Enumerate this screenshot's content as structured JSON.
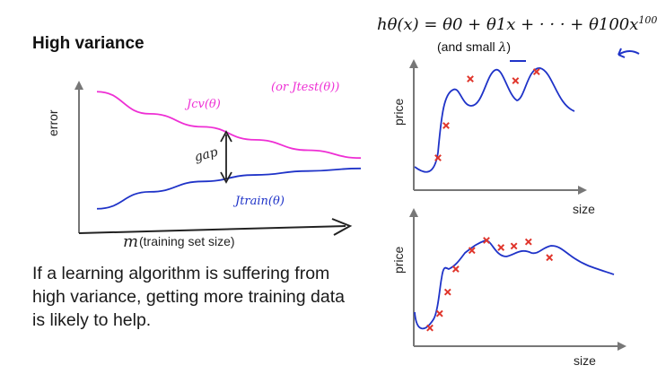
{
  "slide": {
    "title": "High variance",
    "formula_label": "hθ(x) = θ0 + θ1x + · · · + θ100x",
    "formula_exponent": "100",
    "formula_note_prefix": "(and small ",
    "formula_note_symbol": "λ",
    "formula_note_suffix": ")",
    "paragraph": "If a learning algorithm is suffering from high variance, getting more training data is likely to help."
  },
  "colors": {
    "cv_curve": "#ee2fd4",
    "train_curve": "#1f33c8",
    "fit_curve": "#1f33c8",
    "data_marks": "#e0352b",
    "annotation": "#1f33c8"
  },
  "icons": [
    "arrow-icon"
  ],
  "chart_data": [
    {
      "type": "line",
      "ylabel": "error",
      "xlabel_symbol": "m",
      "xlabel": "(training set size)",
      "annotations": {
        "cv": "Jcv(θ)",
        "test": "(or Jtest(θ))",
        "train": "Jtrain(θ)",
        "gap": "gap"
      },
      "series": [
        {
          "name": "Jcv(θ)",
          "values": [
            0.95,
            0.78,
            0.68,
            0.58,
            0.5,
            0.44
          ]
        },
        {
          "name": "Jtrain(θ)",
          "values": [
            0.05,
            0.18,
            0.26,
            0.31,
            0.34,
            0.36
          ]
        }
      ]
    },
    {
      "type": "scatter",
      "ylabel": "price",
      "xlabel": "size",
      "points": [
        [
          1.5,
          1.2
        ],
        [
          2.0,
          3.0
        ],
        [
          3.5,
          5.6
        ],
        [
          6.3,
          5.5
        ],
        [
          7.6,
          6.0
        ]
      ],
      "fit": "curve"
    },
    {
      "type": "scatter",
      "ylabel": "price",
      "xlabel": "size",
      "points": [
        [
          1.0,
          0.4
        ],
        [
          1.6,
          1.4
        ],
        [
          2.1,
          2.9
        ],
        [
          2.6,
          4.5
        ],
        [
          3.6,
          5.8
        ],
        [
          4.5,
          6.5
        ],
        [
          5.4,
          6.0
        ],
        [
          6.2,
          6.1
        ],
        [
          7.1,
          6.4
        ],
        [
          8.4,
          5.3
        ]
      ],
      "fit": "curve"
    }
  ]
}
